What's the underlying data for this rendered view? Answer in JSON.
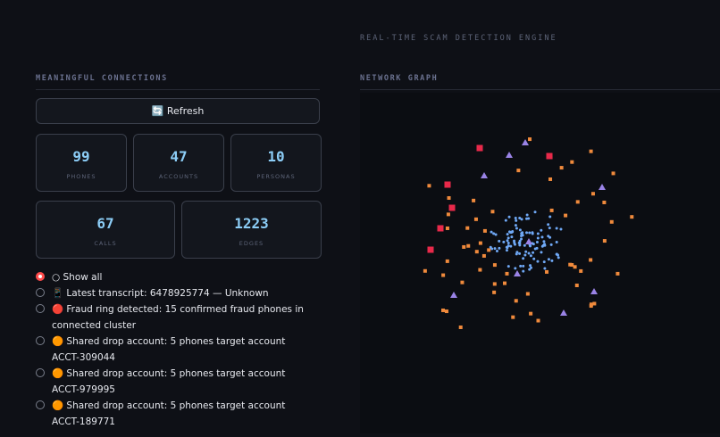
{
  "header": {
    "title": "REAL-TIME SCAM DETECTION ENGINE"
  },
  "connections": {
    "title": "MEANINGFUL CONNECTIONS",
    "refresh": "🔄 Refresh",
    "stats": [
      {
        "value": 99,
        "label": "PHONES"
      },
      {
        "value": 47,
        "label": "ACCOUNTS"
      },
      {
        "value": 10,
        "label": "PERSONAS"
      },
      {
        "value": 67,
        "label": "CALLS"
      },
      {
        "value": 1223,
        "label": "EDGES"
      }
    ],
    "options": [
      "○ Show all",
      "📱 Latest transcript: 6478925774 — Unknown",
      "🔴 Fraud ring detected: 15 confirmed fraud phones in connected cluster",
      "🟠 Shared drop account: 5 phones target account ACCT-309044",
      "🟠 Shared drop account: 5 phones target account ACCT-979995",
      "🟠 Shared drop account: 5 phones target account ACCT-189771"
    ]
  },
  "graph": {
    "title": "NETWORK GRAPH"
  }
}
